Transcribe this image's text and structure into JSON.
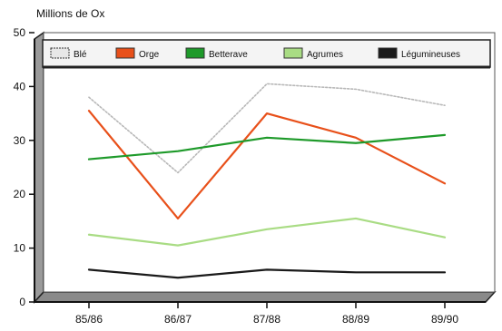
{
  "chart_data": {
    "type": "line",
    "title": "",
    "ylabel": "Millions de Ox",
    "xlabel": "",
    "categories": [
      "85/86",
      "86/87",
      "87/88",
      "88/89",
      "89/90"
    ],
    "ylim": [
      0,
      50
    ],
    "yticks": [
      0,
      10,
      20,
      30,
      40,
      50
    ],
    "grid": false,
    "legend_position": "top",
    "series": [
      {
        "name": "Blé",
        "values": [
          38,
          24,
          40.5,
          39.5,
          36.5
        ],
        "color": "#b8b8b8",
        "style": "dotted"
      },
      {
        "name": "Orge",
        "values": [
          35.5,
          15.5,
          35,
          30.5,
          22
        ],
        "color": "#e8501a",
        "style": "solid"
      },
      {
        "name": "Betterave",
        "values": [
          26.5,
          28,
          30.5,
          29.5,
          31
        ],
        "color": "#1e9a2a",
        "style": "solid"
      },
      {
        "name": "Agrumes",
        "values": [
          12.5,
          10.5,
          13.5,
          15.5,
          12
        ],
        "color": "#a9dc84",
        "style": "solid"
      },
      {
        "name": "Légumineuses",
        "values": [
          6,
          4.5,
          6,
          5.5,
          5.5
        ],
        "color": "#1a1a1a",
        "style": "solid"
      }
    ]
  }
}
